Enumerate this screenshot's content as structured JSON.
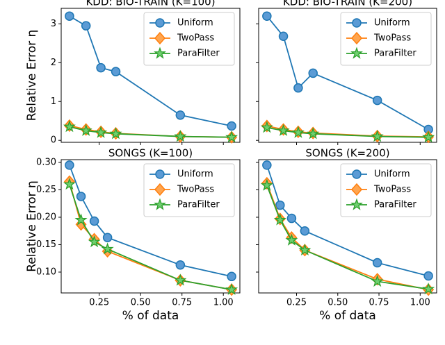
{
  "chart_data": [
    {
      "type": "line",
      "title": "KDD: BIO-TRAIN (K=100)",
      "ylabel": "Relative Error η",
      "x": [
        0.07,
        0.17,
        0.26,
        0.35,
        0.74,
        1.05
      ],
      "series": [
        {
          "name": "Uniform",
          "color": "#1f77b4",
          "values": [
            3.2,
            2.95,
            1.87,
            1.77,
            0.65,
            0.37
          ]
        },
        {
          "name": "TwoPass",
          "color": "#ff7f0e",
          "values": [
            0.38,
            0.28,
            0.22,
            0.18,
            0.1,
            0.08
          ]
        },
        {
          "name": "ParaFilter",
          "color": "#2ca02c",
          "values": [
            0.35,
            0.25,
            0.2,
            0.17,
            0.1,
            0.08
          ]
        }
      ],
      "xlim": [
        0.02,
        1.1
      ],
      "xticks": [
        0.25,
        {
          "value": 0.5,
          "label": "0.50"
        },
        0.75,
        {
          "value": 1,
          "label": "1.00"
        }
      ],
      "show_xtick_labels": false,
      "ylim": [
        -0.05,
        3.4
      ],
      "yticks": [
        0,
        1,
        2,
        3
      ],
      "show_ytick_labels": true,
      "legend": "upper right"
    },
    {
      "type": "line",
      "title": "KDD: BIO-TRAIN (K=200)",
      "x": [
        0.07,
        0.17,
        0.26,
        0.35,
        0.74,
        1.05
      ],
      "series": [
        {
          "name": "Uniform",
          "color": "#1f77b4",
          "values": [
            3.2,
            2.68,
            1.35,
            1.73,
            1.03,
            0.28
          ]
        },
        {
          "name": "TwoPass",
          "color": "#ff7f0e",
          "values": [
            0.37,
            0.28,
            0.22,
            0.19,
            0.11,
            0.09
          ]
        },
        {
          "name": "ParaFilter",
          "color": "#2ca02c",
          "values": [
            0.33,
            0.25,
            0.2,
            0.17,
            0.1,
            0.08
          ]
        }
      ],
      "xlim": [
        0.02,
        1.1
      ],
      "xticks": [
        0.25,
        {
          "value": 0.5,
          "label": "0.50"
        },
        0.75,
        {
          "value": 1,
          "label": "1.00"
        }
      ],
      "show_xtick_labels": false,
      "ylim": [
        -0.05,
        3.4
      ],
      "yticks": [
        0,
        1,
        2,
        3
      ],
      "show_ytick_labels": false,
      "legend": "upper right"
    },
    {
      "type": "line",
      "title": "SONGS (K=100)",
      "ylabel": "Relative Error η",
      "xlabel": "% of data",
      "x": [
        0.07,
        0.14,
        0.22,
        0.3,
        0.74,
        1.05
      ],
      "series": [
        {
          "name": "Uniform",
          "color": "#1f77b4",
          "values": [
            0.295,
            0.238,
            0.193,
            0.163,
            0.113,
            0.092
          ]
        },
        {
          "name": "TwoPass",
          "color": "#ff7f0e",
          "values": [
            0.265,
            0.187,
            0.16,
            0.138,
            0.085,
            0.068
          ]
        },
        {
          "name": "ParaFilter",
          "color": "#2ca02c",
          "values": [
            0.26,
            0.195,
            0.155,
            0.142,
            0.085,
            0.068
          ]
        }
      ],
      "xlim": [
        0.02,
        1.1
      ],
      "xticks": [
        0.25,
        {
          "value": 0.5,
          "label": "0.50"
        },
        0.75,
        {
          "value": 1,
          "label": "1.00"
        }
      ],
      "show_xtick_labels": true,
      "ylim": [
        0.062,
        0.305
      ],
      "yticks": [
        {
          "value": 0.1,
          "label": "0.10"
        },
        0.15,
        {
          "value": 0.2,
          "label": "0.20"
        },
        0.25,
        {
          "value": 0.3,
          "label": "0.30"
        }
      ],
      "show_ytick_labels": true,
      "legend": "upper right"
    },
    {
      "type": "line",
      "title": "SONGS (K=200)",
      "xlabel": "% of data",
      "x": [
        0.07,
        0.15,
        0.22,
        0.3,
        0.74,
        1.05
      ],
      "series": [
        {
          "name": "Uniform",
          "color": "#1f77b4",
          "values": [
            0.295,
            0.222,
            0.198,
            0.175,
            0.117,
            0.093
          ]
        },
        {
          "name": "TwoPass",
          "color": "#ff7f0e",
          "values": [
            0.262,
            0.197,
            0.163,
            0.14,
            0.087,
            0.068
          ]
        },
        {
          "name": "ParaFilter",
          "color": "#2ca02c",
          "values": [
            0.258,
            0.195,
            0.158,
            0.14,
            0.083,
            0.069
          ]
        }
      ],
      "xlim": [
        0.02,
        1.1
      ],
      "xticks": [
        0.25,
        {
          "value": 0.5,
          "label": "0.50"
        },
        0.75,
        {
          "value": 1,
          "label": "1.00"
        }
      ],
      "show_xtick_labels": true,
      "ylim": [
        0.062,
        0.305
      ],
      "yticks": [
        {
          "value": 0.1,
          "label": "0.10"
        },
        0.15,
        {
          "value": 0.2,
          "label": "0.20"
        },
        0.25,
        {
          "value": 0.3,
          "label": "0.30"
        }
      ],
      "show_ytick_labels": false,
      "legend": "upper right"
    }
  ]
}
